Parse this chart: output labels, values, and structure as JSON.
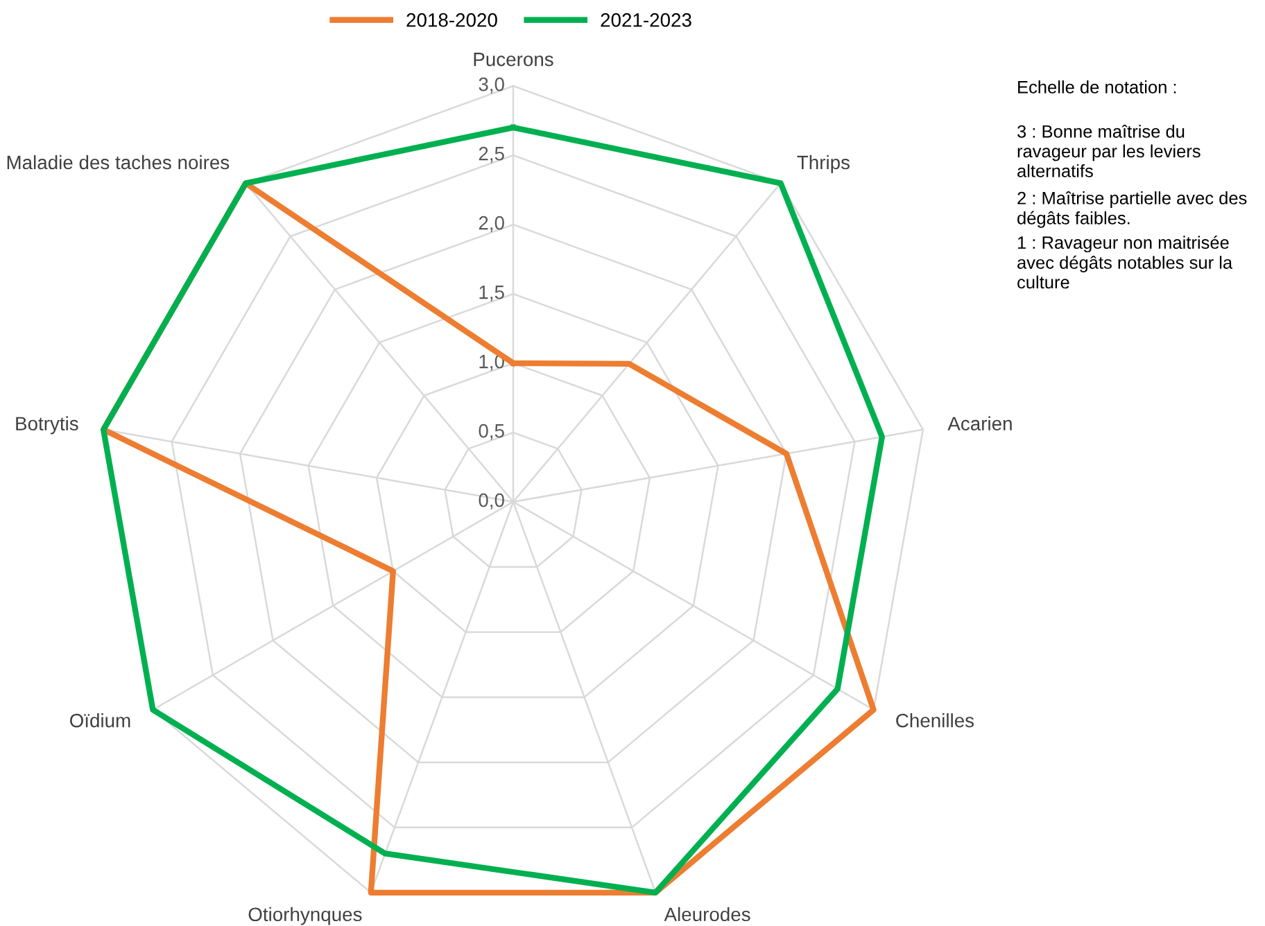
{
  "chart_data": {
    "type": "radar",
    "categories": [
      "Pucerons",
      "Thrips",
      "Acarien",
      "Chenilles",
      "Aleurodes",
      "Otiorhynques",
      "Oïdium",
      "Botrytis",
      "Maladie des taches noires"
    ],
    "series": [
      {
        "name": "2018-2020",
        "color": "#ed7d31",
        "values": [
          1.0,
          1.3,
          2.0,
          3.0,
          3.0,
          3.0,
          1.0,
          3.0,
          3.0
        ]
      },
      {
        "name": "2021-2023",
        "color": "#00b050",
        "values": [
          2.7,
          3.0,
          2.7,
          2.7,
          3.0,
          2.7,
          3.0,
          3.0,
          3.0
        ]
      }
    ],
    "ylim": [
      0,
      3
    ],
    "yticks": [
      {
        "value": 0,
        "label": "0,0"
      },
      {
        "value": 0.5,
        "label": "0,5"
      },
      {
        "value": 1,
        "label": "1,0"
      },
      {
        "value": 1.5,
        "label": "1,5"
      },
      {
        "value": 2,
        "label": "2,0"
      },
      {
        "value": 2.5,
        "label": "2,5"
      },
      {
        "value": 3,
        "label": "3,0"
      }
    ],
    "grid": true,
    "legend": "top",
    "annotations": [
      "Echelle de notation :",
      "3 : Bonne maîtrise du\nravageur par les leviers\nalternatifs",
      "2 : Maîtrise partielle avec des\ndégâts faibles.",
      "1 : Ravageur non maitrisée\navec dégâts notables sur la\nculture"
    ]
  }
}
